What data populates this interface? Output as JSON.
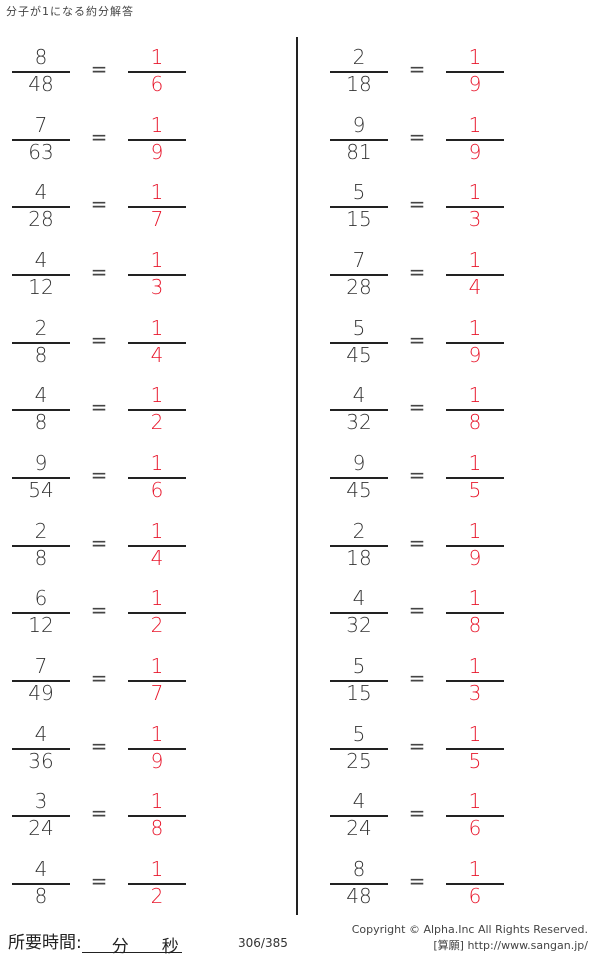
{
  "title": "分子が1になる約分解答",
  "left": [
    {
      "num": "8",
      "den": "48",
      "ans_num": "1",
      "ans_den": "6"
    },
    {
      "num": "7",
      "den": "63",
      "ans_num": "1",
      "ans_den": "9"
    },
    {
      "num": "4",
      "den": "28",
      "ans_num": "1",
      "ans_den": "7"
    },
    {
      "num": "4",
      "den": "12",
      "ans_num": "1",
      "ans_den": "3"
    },
    {
      "num": "2",
      "den": "8",
      "ans_num": "1",
      "ans_den": "4"
    },
    {
      "num": "4",
      "den": "8",
      "ans_num": "1",
      "ans_den": "2"
    },
    {
      "num": "9",
      "den": "54",
      "ans_num": "1",
      "ans_den": "6"
    },
    {
      "num": "2",
      "den": "8",
      "ans_num": "1",
      "ans_den": "4"
    },
    {
      "num": "6",
      "den": "12",
      "ans_num": "1",
      "ans_den": "2"
    },
    {
      "num": "7",
      "den": "49",
      "ans_num": "1",
      "ans_den": "7"
    },
    {
      "num": "4",
      "den": "36",
      "ans_num": "1",
      "ans_den": "9"
    },
    {
      "num": "3",
      "den": "24",
      "ans_num": "1",
      "ans_den": "8"
    },
    {
      "num": "4",
      "den": "8",
      "ans_num": "1",
      "ans_den": "2"
    }
  ],
  "right": [
    {
      "num": "2",
      "den": "18",
      "ans_num": "1",
      "ans_den": "9"
    },
    {
      "num": "9",
      "den": "81",
      "ans_num": "1",
      "ans_den": "9"
    },
    {
      "num": "5",
      "den": "15",
      "ans_num": "1",
      "ans_den": "3"
    },
    {
      "num": "7",
      "den": "28",
      "ans_num": "1",
      "ans_den": "4"
    },
    {
      "num": "5",
      "den": "45",
      "ans_num": "1",
      "ans_den": "9"
    },
    {
      "num": "4",
      "den": "32",
      "ans_num": "1",
      "ans_den": "8"
    },
    {
      "num": "9",
      "den": "45",
      "ans_num": "1",
      "ans_den": "5"
    },
    {
      "num": "2",
      "den": "18",
      "ans_num": "1",
      "ans_den": "9"
    },
    {
      "num": "4",
      "den": "32",
      "ans_num": "1",
      "ans_den": "8"
    },
    {
      "num": "5",
      "den": "15",
      "ans_num": "1",
      "ans_den": "3"
    },
    {
      "num": "5",
      "den": "25",
      "ans_num": "1",
      "ans_den": "5"
    },
    {
      "num": "4",
      "den": "24",
      "ans_num": "1",
      "ans_den": "6"
    },
    {
      "num": "8",
      "den": "48",
      "ans_num": "1",
      "ans_den": "6"
    }
  ],
  "equals": "=",
  "footer": {
    "time_label": "所要時間:",
    "minutes": "分",
    "seconds": "秒",
    "page": "306/385",
    "copyright": "Copyright ©  Alpha.Inc All Rights Reserved.",
    "site": "[算願] http://www.sangan.jp/"
  },
  "colors": {
    "answer": "#e8172c",
    "text": "#333333"
  }
}
